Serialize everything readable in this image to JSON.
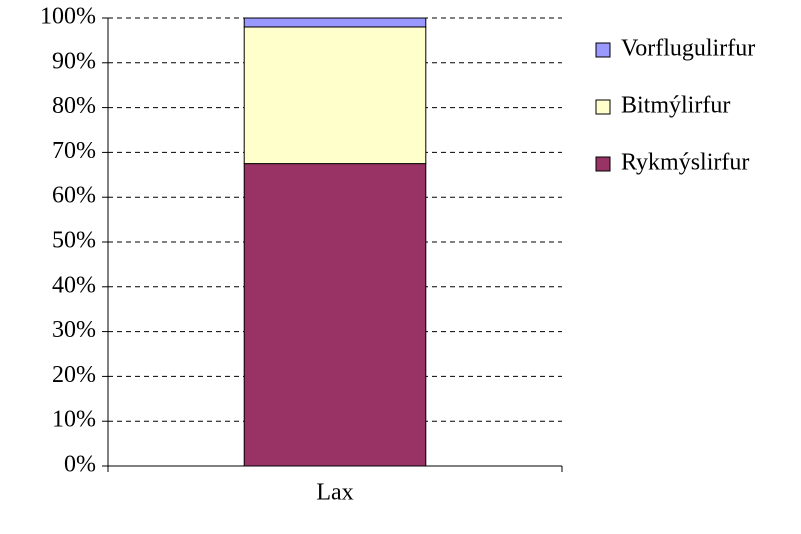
{
  "chart_data": {
    "type": "stacked_bar",
    "categories": [
      "Lax"
    ],
    "series": [
      {
        "name": "Rykmýslirfur",
        "color": "#993366",
        "values": [
          67.5
        ]
      },
      {
        "name": "Bitmýlirfur",
        "color": "#ffffcc",
        "values": [
          30.5
        ]
      },
      {
        "name": "Vorflugulirfur",
        "color": "#9999ff",
        "values": [
          2
        ]
      }
    ],
    "ylim": [
      0,
      100
    ],
    "yticks": [
      {
        "value": 0,
        "label": "0%"
      },
      {
        "value": 10,
        "label": "10%"
      },
      {
        "value": 20,
        "label": "20%"
      },
      {
        "value": 30,
        "label": "30%"
      },
      {
        "value": 40,
        "label": "40%"
      },
      {
        "value": 50,
        "label": "50%"
      },
      {
        "value": 60,
        "label": "60%"
      },
      {
        "value": 70,
        "label": "70%"
      },
      {
        "value": 80,
        "label": "80%"
      },
      {
        "value": 90,
        "label": "90%"
      },
      {
        "value": 100,
        "label": "100%"
      }
    ],
    "grid": true,
    "legend": "right"
  }
}
